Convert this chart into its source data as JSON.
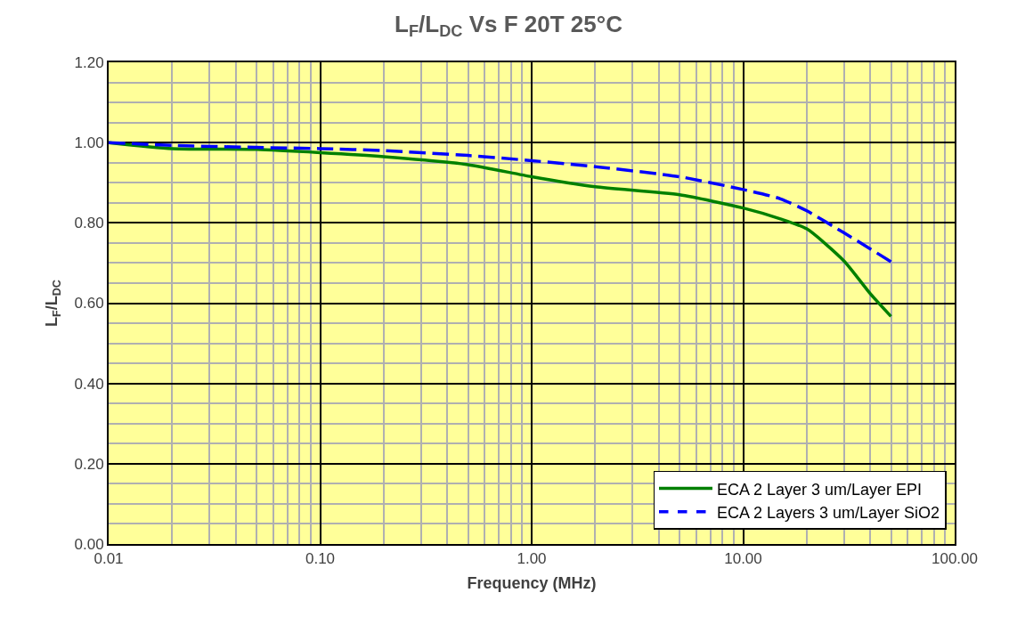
{
  "chart_data": {
    "type": "line",
    "title": "L$_{F}$/L$_{DC}$ Vs F 20T 25°C",
    "xlabel": "Frequency (MHz)",
    "ylabel": "L$_{F}$/L$_{DC}$",
    "x": [
      0.01,
      0.02,
      0.05,
      0.1,
      0.2,
      0.5,
      1,
      2,
      5,
      10,
      15,
      20,
      30,
      40,
      50
    ],
    "series": [
      {
        "name": "ECA 2 Layer 3 um/Layer EPI",
        "color": "#008000",
        "line_style": "solid",
        "values": [
          1.0,
          0.985,
          0.983,
          0.975,
          0.965,
          0.945,
          0.915,
          0.89,
          0.87,
          0.837,
          0.81,
          0.785,
          0.705,
          0.623,
          0.567
        ]
      },
      {
        "name": "ECA 2 Layers 3 um/Layer SiO2",
        "color": "#0000ff",
        "line_style": "dashed",
        "values": [
          1.0,
          0.993,
          0.988,
          0.985,
          0.98,
          0.968,
          0.955,
          0.94,
          0.915,
          0.883,
          0.86,
          0.83,
          0.775,
          0.735,
          0.703
        ]
      }
    ],
    "log": "x",
    "xlim": [
      0.01,
      100
    ],
    "xticks": [
      {
        "value": 0.01,
        "label": "0.01"
      },
      {
        "value": 0.1,
        "label": "0.10"
      },
      {
        "value": 1,
        "label": "1.00"
      },
      {
        "value": 10,
        "label": "10.00"
      },
      {
        "value": 100,
        "label": "100.00"
      }
    ],
    "ylim": [
      0,
      1.2
    ],
    "yticks": [
      {
        "value": 0,
        "label": "0.00"
      },
      {
        "value": 0.2,
        "label": "0.20"
      },
      {
        "value": 0.4,
        "label": "0.40"
      },
      {
        "value": 0.6,
        "label": "0.60"
      },
      {
        "value": 0.8,
        "label": "0.80"
      },
      {
        "value": 1,
        "label": "1.00"
      },
      {
        "value": 1.2,
        "label": "1.20"
      }
    ],
    "grid": true,
    "legend": "bottom right",
    "marker": "none"
  }
}
